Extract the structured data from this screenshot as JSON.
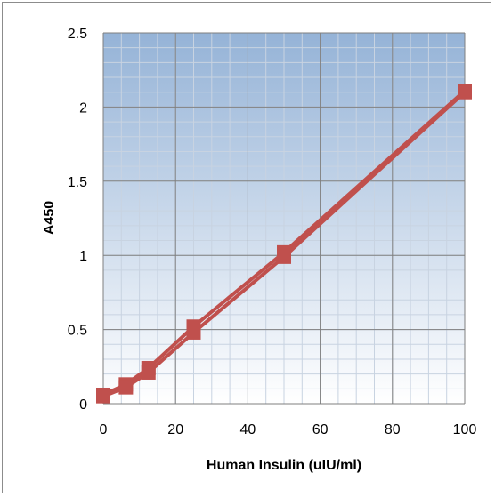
{
  "chart_data": {
    "type": "line",
    "title": "",
    "xlabel": "Human Insulin (uIU/ml)",
    "ylabel": "A450",
    "xlim": [
      0,
      100
    ],
    "ylim": [
      0,
      2.5
    ],
    "xticks": [
      0,
      20,
      40,
      60,
      80,
      100
    ],
    "yticks": [
      0,
      0.5,
      1,
      1.5,
      2,
      2.5
    ],
    "xtick_labels": [
      "0",
      "20",
      "40",
      "60",
      "80",
      "100"
    ],
    "ytick_labels": [
      "0",
      "0.5",
      "1",
      "1.5",
      "2",
      "2.5"
    ],
    "x_minor_step": 5,
    "y_minor_step": 0.1,
    "grid": true,
    "legend": "none",
    "colors": {
      "series": "#c0504d",
      "plot_bg_top": "#95b3d7",
      "plot_bg_bottom": "#ffffff",
      "major_grid": "#7f7f7f",
      "minor_grid": "#c8d3e1"
    },
    "series": [
      {
        "marker": "square",
        "x": [
          0,
          6.25,
          12.5,
          25,
          50,
          100
        ],
        "y": [
          0.06,
          0.13,
          0.24,
          0.52,
          1.02,
          2.11
        ]
      },
      {
        "marker": "square",
        "x": [
          0,
          6.25,
          12.5,
          25,
          50,
          100
        ],
        "y": [
          0.05,
          0.11,
          0.21,
          0.48,
          0.99,
          2.1
        ]
      }
    ]
  }
}
